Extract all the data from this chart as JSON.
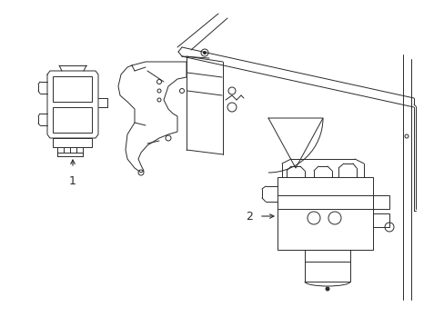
{
  "background_color": "#ffffff",
  "line_color": "#2a2a2a",
  "fig_width": 4.89,
  "fig_height": 3.6,
  "dpi": 100,
  "label1_text": "1",
  "label2_text": "2"
}
